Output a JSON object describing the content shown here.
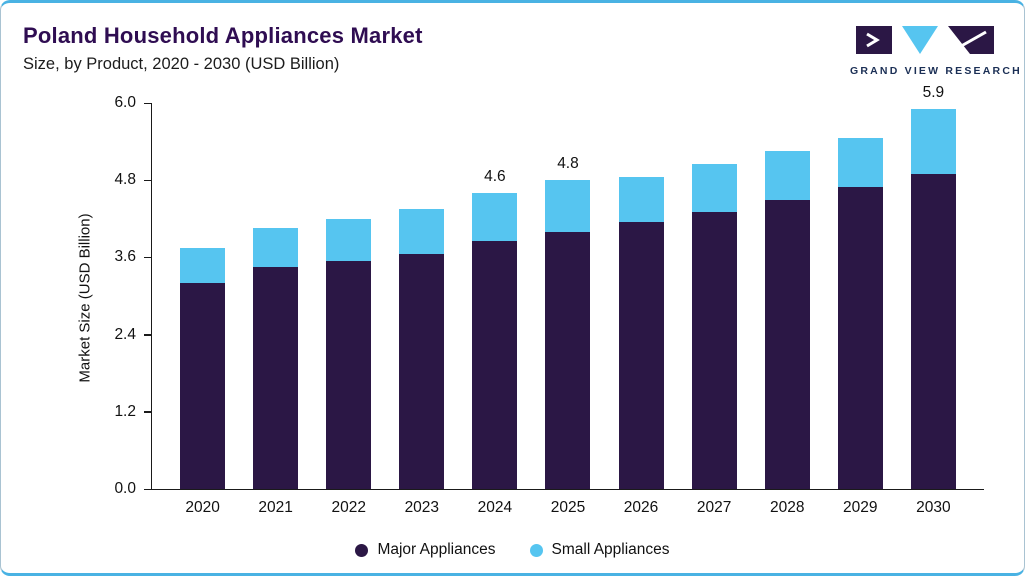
{
  "header": {
    "title": "Poland Household Appliances Market",
    "subtitle": "Size, by Product, 2020 - 2030 (USD Billion)"
  },
  "logo": {
    "text": "GRAND VIEW RESEARCH"
  },
  "chart_data": {
    "type": "bar",
    "stacked": true,
    "title": "Poland Household Appliances Market",
    "subtitle": "Size, by Product, 2020 - 2030 (USD Billion)",
    "ylabel": "Market Size (USD Billion)",
    "ylim": [
      0,
      6.0
    ],
    "yticks": [
      "0.0",
      "1.2",
      "2.4",
      "3.6",
      "4.8",
      "6.0"
    ],
    "categories": [
      "2020",
      "2021",
      "2022",
      "2023",
      "2024",
      "2025",
      "2026",
      "2027",
      "2028",
      "2029",
      "2030"
    ],
    "series": [
      {
        "name": "Major Appliances",
        "color": "#2b1745",
        "values": [
          3.2,
          3.45,
          3.55,
          3.65,
          3.85,
          4.0,
          4.15,
          4.3,
          4.5,
          4.7,
          4.9
        ]
      },
      {
        "name": "Small Appliances",
        "color": "#56c5f0",
        "values": [
          0.55,
          0.6,
          0.65,
          0.7,
          0.75,
          0.8,
          0.7,
          0.75,
          0.75,
          0.75,
          1.0
        ]
      }
    ],
    "value_labels": [
      null,
      null,
      null,
      null,
      "4.6",
      "4.8",
      null,
      null,
      null,
      null,
      "5.9"
    ],
    "legend_position": "bottom",
    "grid": false
  },
  "colors": {
    "accent_border": "#49b2e3",
    "title_text": "#2f0d52",
    "major_series": "#2b1745",
    "small_series": "#56c5f0"
  }
}
